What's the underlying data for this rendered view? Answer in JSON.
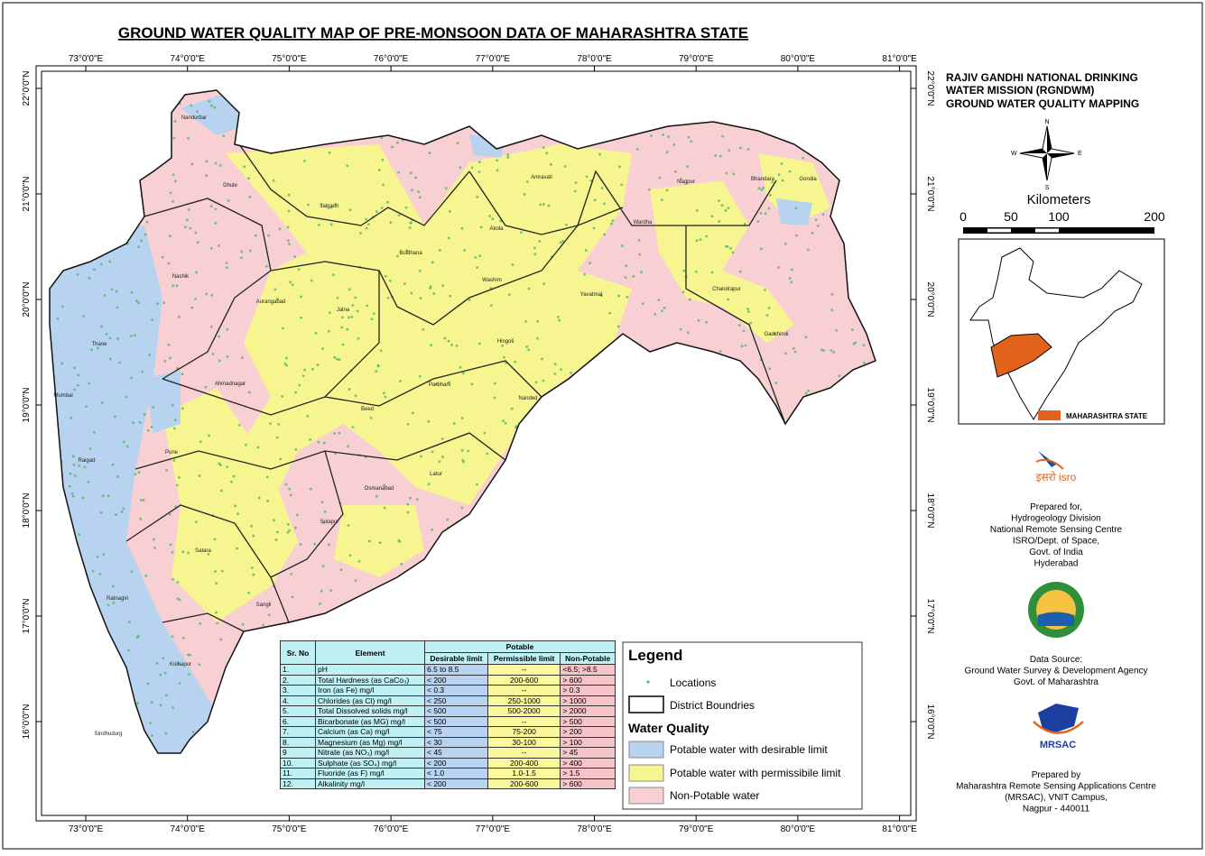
{
  "title": "GROUND WATER QUALITY MAP OF PRE-MONSOON DATA OF MAHARASHTRA STATE",
  "map": {
    "longitudes": [
      "73°0'0\"E",
      "74°0'0\"E",
      "75°0'0\"E",
      "76°0'0\"E",
      "77°0'0\"E",
      "78°0'0\"E",
      "79°0'0\"E",
      "80°0'0\"E",
      "81°0'0\"E"
    ],
    "latitudes": [
      "22°0'0\"N",
      "21°0'0\"N",
      "20°0'0\"N",
      "19°0'0\"N",
      "18°0'0\"N",
      "17°0'0\"N",
      "16°0'0\"N"
    ],
    "districts": [
      "Nandurbar",
      "Dhule",
      "Jalgaon",
      "Buldhana",
      "Akola",
      "Amravati",
      "Washim",
      "Nagpur",
      "Bhandara",
      "Gondia",
      "Wardha",
      "Yavatmal",
      "Chandrapur",
      "Gadchiroli",
      "Nashik",
      "Aurangabad",
      "Jalna",
      "Hingoli",
      "Parbhani",
      "Nanded",
      "Thane",
      "Mumbai",
      "Ahmadnagar",
      "Beed",
      "Latur",
      "Osmanabad",
      "Pune",
      "Raigad",
      "Satara",
      "Solapur",
      "Sangli",
      "Ratnagiri",
      "Kolhapur",
      "Sindhudurg"
    ]
  },
  "table": {
    "header": [
      "Sr. No",
      "Element",
      "Potable",
      "Desirable limit",
      "Permissible limit",
      "Non-Potable"
    ],
    "rows": [
      [
        "1.",
        "pH",
        "6.5 to 8.5",
        "--",
        "<6.5; >8.5"
      ],
      [
        "2.",
        "Total Hardness (as CaCo₃)",
        "< 200",
        "200-600",
        "> 600"
      ],
      [
        "3.",
        "Iron  (as Fe) mg/l",
        "< 0.3",
        "--",
        "> 0.3"
      ],
      [
        "4.",
        "Chlorides (as Cl) mg/l",
        "< 250",
        "250-1000",
        "> 1000"
      ],
      [
        "5.",
        "Total Dissolved solids  mg/l",
        "< 500",
        "500-2000",
        "> 2000"
      ],
      [
        "6.",
        "Bicarbonate (as MG) mg/l",
        "< 500",
        "--",
        "> 500"
      ],
      [
        "7.",
        "Calcium  (as Ca) mg/l",
        "< 75",
        "75-200",
        "> 200"
      ],
      [
        "8.",
        "Magnesium (as Mg) mg/l",
        "< 30",
        "30-100",
        "> 100"
      ],
      [
        "9",
        "Nitrate  (as NO₃) mg/l",
        "< 45",
        "--",
        "> 45"
      ],
      [
        "10.",
        "Sulphate  (as SO₄) mg/l",
        "< 200",
        "200-400",
        "> 400"
      ],
      [
        "11.",
        "Fluoride (as F) mg/l",
        "< 1.0",
        "1.0-1.5",
        "> 1.5"
      ],
      [
        "12.",
        "Alkalinity mg/l",
        "< 200",
        "200-600",
        "> 600"
      ]
    ]
  },
  "legend": {
    "title": "Legend",
    "locations": "Locations",
    "districts": "District Boundries",
    "quality_title": "Water Quality",
    "items": [
      "Potable water with desirable limit",
      "Potable water with permissibile limit",
      "Non-Potable water"
    ]
  },
  "side": {
    "heading": [
      "RAJIV GANDHI NATIONAL DRINKING",
      "WATER MISSION (RGNDWM)",
      "GROUND WATER QUALITY MAPPING"
    ],
    "compass": [
      "N",
      "S",
      "E",
      "W"
    ],
    "scale_title": "Kilometers",
    "scale_labels": [
      "0",
      "50",
      "100",
      "200"
    ],
    "inset_label": "MAHARASHTRA STATE",
    "isro": "इसरो isro",
    "prepared_for": [
      "Prepared for,",
      "Hydrogeology Division",
      "National Remote Sensing Centre",
      "ISRO/Dept. of Space,",
      "Govt. of India",
      "Hyderabad"
    ],
    "data_source": [
      "Data Source:",
      "Ground Water Survey & Development Agency",
      "Govt. of Maharashtra"
    ],
    "mrsac": "MRSAC",
    "prepared_by": [
      "Prepared by",
      "Maharashtra Remote Sensing Applications Centre",
      "(MRSAC), VNIT Campus,",
      "Nagpur - 440011"
    ]
  }
}
